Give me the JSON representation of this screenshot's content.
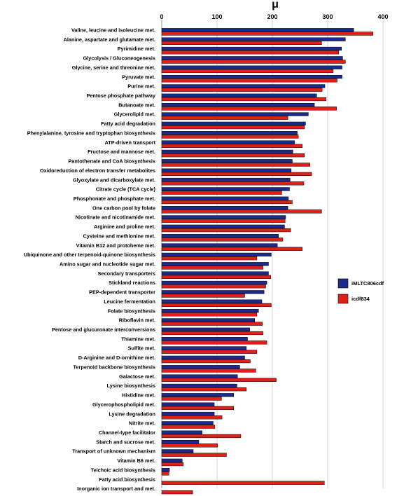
{
  "chart_data": {
    "type": "bar",
    "orientation": "horizontal",
    "title": "μ",
    "xlim": [
      0,
      400
    ],
    "xticks": [
      "0",
      "100",
      "200",
      "300",
      "400"
    ],
    "grid": true,
    "legend_position": "right",
    "categories": [
      "Valine, leucine and isoleucine met.",
      "Alanine, aspartate and glutamate met.",
      "Pyrimidine met.",
      "Glycolysis / Gluconeogenesis",
      "Glycine, serine and threonine met.",
      "Pyruvate met.",
      "Purine met.",
      "Pentose phosphate pathway",
      "Butanoate met.",
      "Glycerolipid met.",
      "Fatty acid degradation",
      "Phenylalanine, tyrosine and tryptophan biosynthesis",
      "ATP-driven transport",
      "Fructose and mannose met.",
      "Pantothenate and CoA biosynthesis",
      "Oxidoreduction of electron transfer metabolites",
      "Glyoxylate and dicarboxylate met.",
      "Citrate cycle (TCA cycle)",
      "Phosphonate and phosphate met.",
      "One carbon pool by folate",
      "Nicotinate and nicotinamide met.",
      "Arginine and proline met.",
      "Cysteine and methionine met.",
      "Vitamin B12 and protoheme met.",
      "Ubiquinone and other terpenoid-quinone biosynthesis",
      "Amino sugar and nucleotide sugar met.",
      "Secondary transporters",
      "Stickland reactions",
      "PEP-dependent transporter",
      "Leucine fermentation",
      "Folate biosynthesis",
      "Riboflavin met.",
      "Pentose and glucuronate interconversions",
      "Thiamine met.",
      "Sulfite met.",
      "D-Arginine and D-ornithine met.",
      "Terpenoid backbone biosynthesis",
      "Galactose met.",
      "Lysine biosynthesis",
      "Histidine met.",
      "Glycerophospholipid met.",
      "Lysine degradation",
      "Nitrite met.",
      "Channel-type facilitator",
      "Starch and sucrose met.",
      "Transport of unknown mechanism",
      "Vitamin B6 met.",
      "Teichoic acid biosynthesis",
      "Fatty acid biosynthesis",
      "Inorganic ion transport and met."
    ],
    "series": [
      {
        "name": "iMLTC806cdf",
        "color": "#1c2a8c",
        "values": [
          347,
          332,
          325,
          327,
          326,
          326,
          295,
          280,
          276,
          265,
          260,
          245,
          240,
          237,
          236,
          234,
          232,
          231,
          229,
          228,
          224,
          222,
          211,
          209,
          198,
          193,
          193,
          190,
          185,
          181,
          175,
          168,
          159,
          155,
          153,
          150,
          141,
          137,
          136,
          130,
          95,
          95,
          93,
          73,
          67,
          57,
          37,
          14,
          0,
          0
        ]
      },
      {
        "name": "icdf834",
        "color": "#e02018",
        "values": [
          382,
          289,
          320,
          332,
          310,
          317,
          290,
          297,
          316,
          228,
          258,
          247,
          254,
          258,
          268,
          271,
          257,
          217,
          236,
          289,
          223,
          233,
          219,
          254,
          172,
          183,
          197,
          188,
          150,
          198,
          172,
          182,
          183,
          190,
          172,
          160,
          170,
          207,
          153,
          108,
          130,
          109,
          96,
          143,
          101,
          117,
          39,
          13,
          294,
          56
        ]
      }
    ]
  }
}
